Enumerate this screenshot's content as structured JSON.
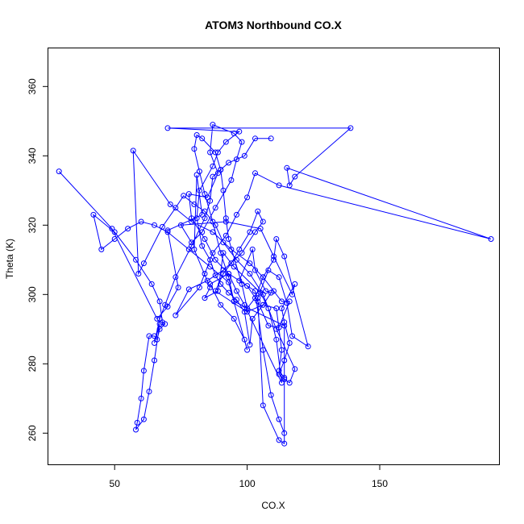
{
  "chart_data": {
    "type": "line",
    "title": "ATOM3 Northbound CO.X",
    "xlabel": "CO.X",
    "ylabel": "Theta (K)",
    "xlim": [
      25,
      195
    ],
    "ylim": [
      251,
      371
    ],
    "xticks": [
      50,
      100,
      150
    ],
    "yticks": [
      260,
      280,
      300,
      320,
      340,
      360
    ],
    "xtick_labels": [
      "50",
      "100",
      "150"
    ],
    "ytick_labels": [
      "260",
      "280",
      "300",
      "320",
      "340",
      "360"
    ],
    "grid": false,
    "legend": "none",
    "color": "#0000ff",
    "series": [
      {
        "points": [
          [
            29,
            335.5
          ],
          [
            49,
            319
          ],
          [
            66,
            293
          ],
          [
            70,
            296.5
          ],
          [
            74,
            302
          ],
          [
            70,
            318.5
          ],
          [
            83,
            323
          ],
          [
            81,
            334.5
          ],
          [
            80,
            313
          ],
          [
            86,
            302
          ],
          [
            84,
            299
          ],
          [
            89,
            301
          ],
          [
            91,
            312
          ],
          [
            95,
            308
          ],
          [
            105,
            300.5
          ],
          [
            108,
            296
          ],
          [
            111,
            287
          ],
          [
            113,
            274.5
          ],
          [
            99,
            297
          ],
          [
            96,
            301
          ],
          [
            93,
            306
          ],
          [
            88,
            310
          ],
          [
            84,
            316
          ],
          [
            79,
            322
          ],
          [
            78,
            329
          ],
          [
            85,
            328
          ],
          [
            89,
            335
          ],
          [
            86,
            341
          ],
          [
            87,
            349
          ],
          [
            95,
            346.5
          ],
          [
            98,
            344
          ],
          [
            96,
            339
          ],
          [
            94,
            333
          ],
          [
            88,
            325
          ],
          [
            83,
            318
          ],
          [
            79,
            315
          ],
          [
            75,
            320
          ],
          [
            92,
            321
          ],
          [
            105,
            319
          ],
          [
            110,
            311
          ],
          [
            117,
            300
          ],
          [
            118,
            303
          ],
          [
            113,
            296
          ],
          [
            114,
            292
          ],
          [
            116,
            286
          ],
          [
            114,
            281
          ],
          [
            112,
            277
          ],
          [
            114,
            275.5
          ],
          [
            116,
            274.5
          ],
          [
            118,
            278.5
          ],
          [
            111,
            290
          ],
          [
            106,
            300
          ],
          [
            101,
            306
          ],
          [
            96,
            310
          ],
          [
            91,
            315
          ],
          [
            88,
            320
          ],
          [
            84,
            324
          ],
          [
            80,
            326
          ],
          [
            76,
            328.5
          ],
          [
            73,
            325
          ],
          [
            68,
            319.5
          ],
          [
            61,
            309
          ],
          [
            59,
            306
          ],
          [
            57,
            341.5
          ],
          [
            71,
            326
          ],
          [
            79,
            321
          ],
          [
            87,
            318
          ],
          [
            94,
            313
          ],
          [
            101,
            309
          ],
          [
            106,
            305
          ],
          [
            110,
            301
          ],
          [
            113,
            298
          ],
          [
            116,
            298
          ],
          [
            112,
            290.5
          ],
          [
            108,
            291
          ],
          [
            104,
            298
          ],
          [
            100,
            302.5
          ],
          [
            97,
            304
          ],
          [
            102,
            313
          ],
          [
            103,
            307
          ],
          [
            107,
            301
          ],
          [
            109,
            300.5
          ],
          [
            106,
            297
          ],
          [
            102,
            293
          ],
          [
            101,
            285.5
          ],
          [
            99,
            295
          ],
          [
            96,
            298.5
          ],
          [
            93,
            300.5
          ],
          [
            90,
            303
          ],
          [
            88,
            305.5
          ],
          [
            86,
            310
          ],
          [
            83,
            314
          ],
          [
            81,
            322
          ],
          [
            82,
            330
          ],
          [
            87,
            337
          ],
          [
            89,
            341
          ],
          [
            92,
            344
          ],
          [
            97,
            347
          ],
          [
            70,
            348
          ],
          [
            139,
            348
          ],
          [
            118,
            334
          ],
          [
            116,
            331.5
          ],
          [
            115,
            336.5
          ],
          [
            192,
            316
          ],
          [
            112,
            331.5
          ],
          [
            103,
            335
          ],
          [
            100,
            328
          ],
          [
            96,
            323
          ],
          [
            92,
            317
          ],
          [
            87,
            312
          ],
          [
            84,
            306
          ],
          [
            82,
            302
          ],
          [
            73,
            294
          ],
          [
            78,
            301.5
          ],
          [
            85,
            304
          ],
          [
            91,
            307
          ],
          [
            98,
            312
          ],
          [
            103,
            318
          ],
          [
            106,
            321
          ],
          [
            104,
            324
          ],
          [
            101,
            318
          ],
          [
            97,
            313
          ],
          [
            94,
            309
          ],
          [
            91,
            306
          ],
          [
            88,
            301
          ],
          [
            100,
            295
          ],
          [
            106,
            297
          ],
          [
            111,
            296
          ],
          [
            113,
            284
          ],
          [
            112,
            278
          ],
          [
            114,
            276
          ],
          [
            114,
            257
          ],
          [
            112,
            258
          ],
          [
            106,
            268
          ],
          [
            104,
            299
          ],
          [
            108,
            307
          ],
          [
            112,
            305
          ],
          [
            115,
            297.5
          ],
          [
            117,
            288
          ],
          [
            123,
            285
          ],
          [
            114,
            311
          ],
          [
            111,
            316
          ],
          [
            110,
            310
          ],
          [
            106,
            305
          ],
          [
            103,
            299
          ],
          [
            100,
            296
          ],
          [
            98,
            303
          ],
          [
            93,
            316
          ],
          [
            92,
            322
          ],
          [
            91,
            330
          ],
          [
            90,
            336
          ],
          [
            88,
            341
          ],
          [
            83,
            345
          ],
          [
            81,
            346
          ],
          [
            80,
            342
          ],
          [
            82,
            335.5
          ],
          [
            84,
            329
          ],
          [
            87,
            321
          ],
          [
            90,
            312
          ],
          [
            93,
            305
          ],
          [
            95,
            298
          ],
          [
            114,
            291
          ],
          [
            114,
            260
          ],
          [
            112,
            264
          ],
          [
            109,
            271
          ],
          [
            106,
            284
          ],
          [
            103,
            301
          ],
          [
            93,
            306
          ],
          [
            86,
            303
          ],
          [
            90,
            297
          ],
          [
            95,
            293
          ],
          [
            99,
            287
          ],
          [
            100,
            284
          ],
          [
            93,
            303.5
          ],
          [
            86,
            308
          ],
          [
            78,
            313
          ],
          [
            70,
            318
          ],
          [
            65,
            320
          ],
          [
            60,
            321
          ],
          [
            55,
            319
          ],
          [
            50,
            316
          ],
          [
            45,
            313
          ],
          [
            42,
            323
          ],
          [
            50,
            318
          ],
          [
            58,
            310
          ],
          [
            64,
            303
          ],
          [
            67,
            298
          ],
          [
            68,
            292
          ],
          [
            69,
            291.5
          ],
          [
            67,
            290
          ],
          [
            66,
            287
          ],
          [
            65,
            288
          ],
          [
            63,
            288
          ],
          [
            61,
            278
          ],
          [
            60,
            270
          ],
          [
            58.5,
            263
          ],
          [
            58,
            261
          ],
          [
            61,
            264
          ],
          [
            63,
            272
          ],
          [
            65,
            281
          ],
          [
            67,
            291.5
          ],
          [
            65,
            286
          ],
          [
            67,
            293
          ],
          [
            69,
            297
          ],
          [
            73,
            305
          ],
          [
            79,
            314
          ],
          [
            84,
            322
          ],
          [
            86,
            327
          ],
          [
            87,
            334
          ],
          [
            90,
            336
          ],
          [
            93,
            338
          ],
          [
            99,
            340
          ],
          [
            103,
            345
          ],
          [
            109,
            345
          ]
        ]
      }
    ]
  }
}
